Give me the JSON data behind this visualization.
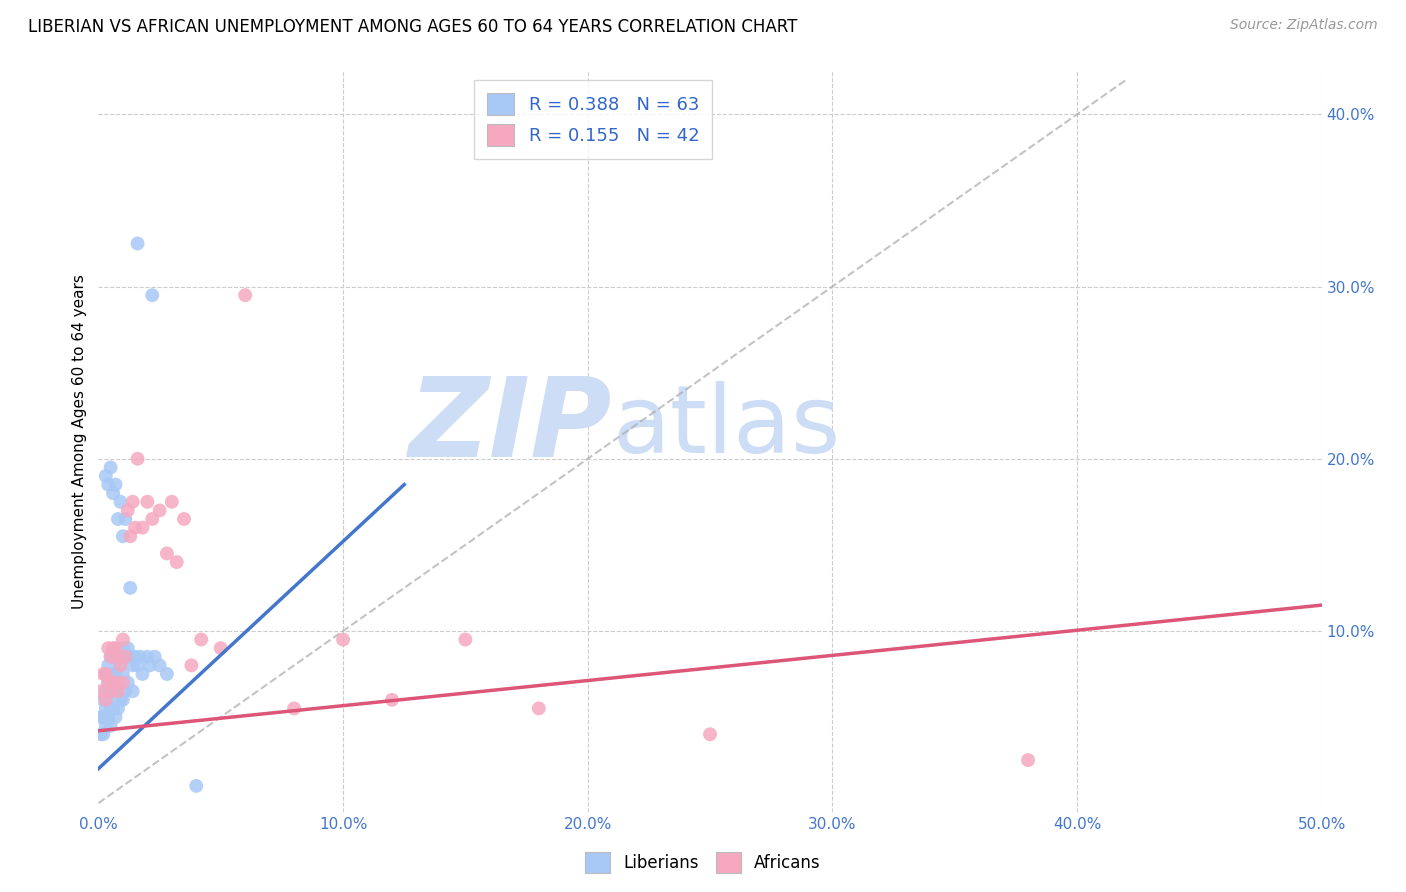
{
  "title": "LIBERIAN VS AFRICAN UNEMPLOYMENT AMONG AGES 60 TO 64 YEARS CORRELATION CHART",
  "source": "Source: ZipAtlas.com",
  "ylabel": "Unemployment Among Ages 60 to 64 years",
  "xlim": [
    0.0,
    0.5
  ],
  "ylim": [
    -0.005,
    0.425
  ],
  "xticks": [
    0.0,
    0.1,
    0.2,
    0.3,
    0.4,
    0.5
  ],
  "xticklabels": [
    "0.0%",
    "10.0%",
    "20.0%",
    "30.0%",
    "40.0%",
    "50.0%"
  ],
  "yticks_right": [
    0.1,
    0.2,
    0.3,
    0.4
  ],
  "yticklabels_right": [
    "10.0%",
    "20.0%",
    "30.0%",
    "40.0%"
  ],
  "liberian_color": "#a8c8f5",
  "african_color": "#f5a8c0",
  "liberian_line_color": "#4477cc",
  "african_line_color": "#dd5577",
  "diagonal_color": "#aaaaaa",
  "watermark_zip": "ZIP",
  "watermark_atlas": "atlas",
  "watermark_color": "#ccddf5",
  "liberian_x": [
    0.001,
    0.001,
    0.002,
    0.002,
    0.002,
    0.003,
    0.003,
    0.003,
    0.003,
    0.004,
    0.004,
    0.004,
    0.004,
    0.005,
    0.005,
    0.005,
    0.005,
    0.005,
    0.006,
    0.006,
    0.006,
    0.006,
    0.007,
    0.007,
    0.007,
    0.007,
    0.008,
    0.008,
    0.008,
    0.009,
    0.009,
    0.01,
    0.01,
    0.01,
    0.011,
    0.011,
    0.012,
    0.012,
    0.013,
    0.014,
    0.014,
    0.015,
    0.016,
    0.017,
    0.018,
    0.02,
    0.021,
    0.023,
    0.025,
    0.028,
    0.003,
    0.004,
    0.005,
    0.006,
    0.007,
    0.008,
    0.009,
    0.01,
    0.011,
    0.013,
    0.016,
    0.022,
    0.04
  ],
  "liberian_y": [
    0.05,
    0.04,
    0.06,
    0.05,
    0.04,
    0.075,
    0.065,
    0.055,
    0.045,
    0.08,
    0.07,
    0.06,
    0.05,
    0.085,
    0.075,
    0.065,
    0.055,
    0.045,
    0.085,
    0.075,
    0.065,
    0.055,
    0.085,
    0.075,
    0.065,
    0.05,
    0.085,
    0.07,
    0.055,
    0.08,
    0.06,
    0.09,
    0.075,
    0.06,
    0.085,
    0.065,
    0.09,
    0.07,
    0.085,
    0.08,
    0.065,
    0.085,
    0.08,
    0.085,
    0.075,
    0.085,
    0.08,
    0.085,
    0.08,
    0.075,
    0.19,
    0.185,
    0.195,
    0.18,
    0.185,
    0.165,
    0.175,
    0.155,
    0.165,
    0.125,
    0.325,
    0.295,
    0.01
  ],
  "african_x": [
    0.001,
    0.002,
    0.003,
    0.003,
    0.004,
    0.004,
    0.005,
    0.005,
    0.006,
    0.006,
    0.007,
    0.007,
    0.008,
    0.008,
    0.009,
    0.01,
    0.01,
    0.011,
    0.012,
    0.013,
    0.014,
    0.015,
    0.016,
    0.018,
    0.02,
    0.022,
    0.025,
    0.028,
    0.03,
    0.032,
    0.035,
    0.038,
    0.042,
    0.05,
    0.06,
    0.08,
    0.1,
    0.12,
    0.15,
    0.18,
    0.25,
    0.38
  ],
  "african_y": [
    0.065,
    0.075,
    0.075,
    0.06,
    0.09,
    0.07,
    0.085,
    0.065,
    0.09,
    0.07,
    0.09,
    0.07,
    0.085,
    0.065,
    0.08,
    0.095,
    0.07,
    0.085,
    0.17,
    0.155,
    0.175,
    0.16,
    0.2,
    0.16,
    0.175,
    0.165,
    0.17,
    0.145,
    0.175,
    0.14,
    0.165,
    0.08,
    0.095,
    0.09,
    0.295,
    0.055,
    0.095,
    0.06,
    0.095,
    0.055,
    0.04,
    0.025
  ],
  "liberian_line_x": [
    0.0,
    0.125
  ],
  "liberian_line_y": [
    0.02,
    0.185
  ],
  "african_line_x": [
    0.0,
    0.5
  ],
  "african_line_y": [
    0.042,
    0.115
  ]
}
